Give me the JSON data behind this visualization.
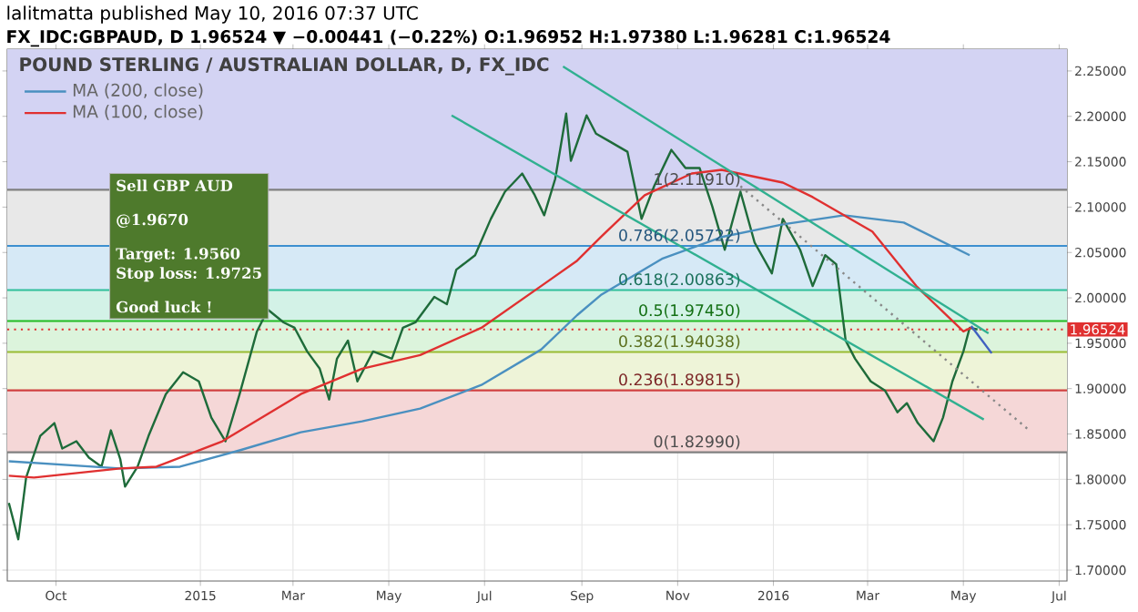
{
  "chart_data": {
    "type": "line",
    "title": "POUND STERLING / AUSTRALIAN DOLLAR, D, FX_IDC",
    "annotations": [
      "lalitmatta published May 10, 2016 07:37 UTC",
      "FX_IDC:GBPAUD, D 1.96524 ▼ −0.00441 (−0.22%) O:1.96952 H:1.97380 L:1.96281 C:1.96524",
      "Sell GBP AUD",
      "@1.9670",
      "Target: 1.9560",
      "Stop loss: 1.9725",
      "Good luck !"
    ],
    "xlim": [
      "2014-08-31",
      "2016-07-06"
    ],
    "xticks": [
      {
        "value": "2014-10-01",
        "label": "Oct"
      },
      {
        "value": "2015-01-01",
        "label": "2015"
      },
      {
        "value": "2015-03-01",
        "label": "Mar"
      },
      {
        "value": "2015-05-01",
        "label": "May"
      },
      {
        "value": "2015-07-01",
        "label": "Jul"
      },
      {
        "value": "2015-09-01",
        "label": "Sep"
      },
      {
        "value": "2015-11-01",
        "label": "Nov"
      },
      {
        "value": "2016-01-01",
        "label": "2016"
      },
      {
        "value": "2016-03-01",
        "label": "Mar"
      },
      {
        "value": "2016-05-01",
        "label": "May"
      },
      {
        "value": "2016-07-01",
        "label": "Jul"
      }
    ],
    "ylim": [
      1.688,
      2.274
    ],
    "yticks": [
      {
        "value": 1.7,
        "label": "1.70000"
      },
      {
        "value": 1.75,
        "label": "1.75000"
      },
      {
        "value": 1.8,
        "label": "1.80000"
      },
      {
        "value": 1.85,
        "label": "1.85000"
      },
      {
        "value": 1.9,
        "label": "1.90000"
      },
      {
        "value": 1.95,
        "label": "1.95000"
      },
      {
        "value": 2.0,
        "label": "2.00000"
      },
      {
        "value": 2.05,
        "label": "2.05000"
      },
      {
        "value": 2.1,
        "label": "2.10000"
      },
      {
        "value": 2.15,
        "label": "2.15000"
      },
      {
        "value": 2.2,
        "label": "2.20000"
      },
      {
        "value": 2.25,
        "label": "2.25000"
      }
    ],
    "grid": true,
    "legend": "top left",
    "bands": [
      {
        "axis": "y",
        "from": 2.1191,
        "to": 2.274,
        "color": "#d3d3f3"
      },
      {
        "axis": "y",
        "from": 2.05722,
        "to": 2.1191,
        "color": "#e8e8e8"
      },
      {
        "axis": "y",
        "from": 2.00863,
        "to": 2.05722,
        "color": "#d6e9f6"
      },
      {
        "axis": "y",
        "from": 1.9745,
        "to": 2.00863,
        "color": "#d3f2e7"
      },
      {
        "axis": "y",
        "from": 1.94038,
        "to": 1.9745,
        "color": "#dcf4dc"
      },
      {
        "axis": "y",
        "from": 1.89815,
        "to": 1.94038,
        "color": "#eef4d8"
      },
      {
        "axis": "y",
        "from": 1.8299,
        "to": 1.89815,
        "color": "#f5d7d7"
      }
    ],
    "ref_lines": [
      {
        "axis": "y",
        "value": 2.1191,
        "label": "1(2.11910)",
        "color": "#808080",
        "line_style": "solid"
      },
      {
        "axis": "y",
        "value": 2.05722,
        "label": "0.786(2.05722)",
        "color": "#3d8fd0",
        "line_style": "solid"
      },
      {
        "axis": "y",
        "value": 2.00863,
        "label": "0.618(2.00863)",
        "color": "#2fbf9a",
        "line_style": "solid"
      },
      {
        "axis": "y",
        "value": 1.9745,
        "label": "0.5(1.97450)",
        "color": "#22bb22",
        "line_style": "solid"
      },
      {
        "axis": "y",
        "value": 1.94038,
        "label": "0.382(1.94038)",
        "color": "#99bb33",
        "line_style": "solid"
      },
      {
        "axis": "y",
        "value": 1.89815,
        "label": "0.236(1.89815)",
        "color": "#d04040",
        "line_style": "solid"
      },
      {
        "axis": "y",
        "value": 1.8299,
        "label": "0(1.82990)",
        "color": "#808080",
        "line_style": "solid"
      },
      {
        "axis": "y",
        "value": 1.96524,
        "label": "1.96524",
        "color": "#e03030",
        "line_style": "dotted"
      }
    ],
    "series": [
      {
        "type": "line",
        "color": "#1e6b3a",
        "x": [
          "2014-09-01",
          "2014-09-07",
          "2014-09-12",
          "2014-09-21",
          "2014-09-30",
          "2014-10-05",
          "2014-10-14",
          "2014-10-22",
          "2014-10-30",
          "2014-11-05",
          "2014-11-11",
          "2014-11-14",
          "2014-11-22",
          "2014-11-29",
          "2014-12-10",
          "2014-12-21",
          "2014-12-31",
          "2015-01-08",
          "2015-01-17",
          "2015-01-26",
          "2015-02-06",
          "2015-02-13",
          "2015-02-23",
          "2015-03-02",
          "2015-03-10",
          "2015-03-18",
          "2015-03-24",
          "2015-03-29",
          "2015-04-05",
          "2015-04-11",
          "2015-04-21",
          "2015-05-03",
          "2015-05-10",
          "2015-05-18",
          "2015-05-30",
          "2015-06-07",
          "2015-06-13",
          "2015-06-25",
          "2015-07-05",
          "2015-07-14",
          "2015-07-25",
          "2015-08-02",
          "2015-08-08",
          "2015-08-15",
          "2015-08-22",
          "2015-08-25",
          "2015-09-04",
          "2015-09-10",
          "2015-09-18",
          "2015-09-30",
          "2015-10-09",
          "2015-10-17",
          "2015-10-28",
          "2015-11-06",
          "2015-11-15",
          "2015-11-23",
          "2015-12-01",
          "2015-12-11",
          "2015-12-20",
          "2015-12-31",
          "2016-01-07",
          "2016-01-18",
          "2016-01-26",
          "2016-02-03",
          "2016-02-10",
          "2016-02-16",
          "2016-02-22",
          "2016-03-03",
          "2016-03-12",
          "2016-03-20",
          "2016-03-26",
          "2016-04-02",
          "2016-04-12",
          "2016-04-18",
          "2016-04-24",
          "2016-05-01",
          "2016-05-05",
          "2016-05-10"
        ],
        "values": [
          1.774,
          1.734,
          1.802,
          1.848,
          1.862,
          1.834,
          1.842,
          1.824,
          1.814,
          1.854,
          1.822,
          1.792,
          1.814,
          1.848,
          1.894,
          1.918,
          1.908,
          1.868,
          1.842,
          1.894,
          1.963,
          1.987,
          1.973,
          1.967,
          1.941,
          1.922,
          1.888,
          1.933,
          1.953,
          1.908,
          1.941,
          1.933,
          1.967,
          1.973,
          2.001,
          1.993,
          2.031,
          2.047,
          2.087,
          2.117,
          2.137,
          2.113,
          2.091,
          2.131,
          2.203,
          2.151,
          2.201,
          2.181,
          2.173,
          2.161,
          2.087,
          2.123,
          2.163,
          2.143,
          2.143,
          2.101,
          2.053,
          2.117,
          2.061,
          2.027,
          2.087,
          2.053,
          2.013,
          2.047,
          2.037,
          1.953,
          1.933,
          1.908,
          1.898,
          1.874,
          1.884,
          1.862,
          1.842,
          1.868,
          1.908,
          1.941,
          1.967,
          1.96524
        ]
      },
      {
        "type": "line",
        "name": "MA (200, close)",
        "color": "#4a90c0",
        "x": [
          "2014-09-01",
          "2014-11-11",
          "2014-12-19",
          "2015-01-26",
          "2015-03-06",
          "2015-04-14",
          "2015-05-21",
          "2015-06-29",
          "2015-08-06",
          "2015-08-29",
          "2015-09-13",
          "2015-10-22",
          "2015-11-29",
          "2016-01-07",
          "2016-02-15",
          "2016-03-24",
          "2016-05-05"
        ],
        "values": [
          1.82,
          1.812,
          1.814,
          1.832,
          1.852,
          1.864,
          1.878,
          1.904,
          1.943,
          1.981,
          2.003,
          2.043,
          2.067,
          2.081,
          2.091,
          2.083,
          2.047
        ]
      },
      {
        "type": "line",
        "name": "MA (100, close)",
        "color": "#e03030",
        "x": [
          "2014-09-01",
          "2014-09-17",
          "2014-11-11",
          "2014-12-04",
          "2015-01-15",
          "2015-03-06",
          "2015-04-14",
          "2015-05-21",
          "2015-06-29",
          "2015-08-06",
          "2015-08-29",
          "2015-09-13",
          "2015-10-11",
          "2015-11-10",
          "2015-11-29",
          "2016-01-07",
          "2016-01-26",
          "2016-03-04",
          "2016-04-01",
          "2016-05-01",
          "2016-05-06"
        ],
        "values": [
          1.804,
          1.802,
          1.812,
          1.814,
          1.842,
          1.894,
          1.922,
          1.937,
          1.967,
          2.013,
          2.041,
          2.067,
          2.113,
          2.137,
          2.141,
          2.127,
          2.111,
          2.073,
          2.013,
          1.963,
          1.967
        ]
      },
      {
        "type": "line",
        "color": "#30b090",
        "x": [
          "2015-08-20",
          "2016-05-17"
        ],
        "values": [
          2.255,
          1.961
        ]
      },
      {
        "type": "line",
        "color": "#30b090",
        "x": [
          "2015-06-10",
          "2016-05-14"
        ],
        "values": [
          2.201,
          1.866
        ]
      },
      {
        "type": "line",
        "color": "#888888",
        "line_style": "dotted",
        "x": [
          "2015-12-11",
          "2016-06-12"
        ],
        "values": [
          2.123,
          1.854
        ]
      },
      {
        "type": "line",
        "color": "#4060c0",
        "x": [
          "2016-05-06",
          "2016-05-19"
        ],
        "values": [
          1.969,
          1.939
        ]
      }
    ]
  }
}
